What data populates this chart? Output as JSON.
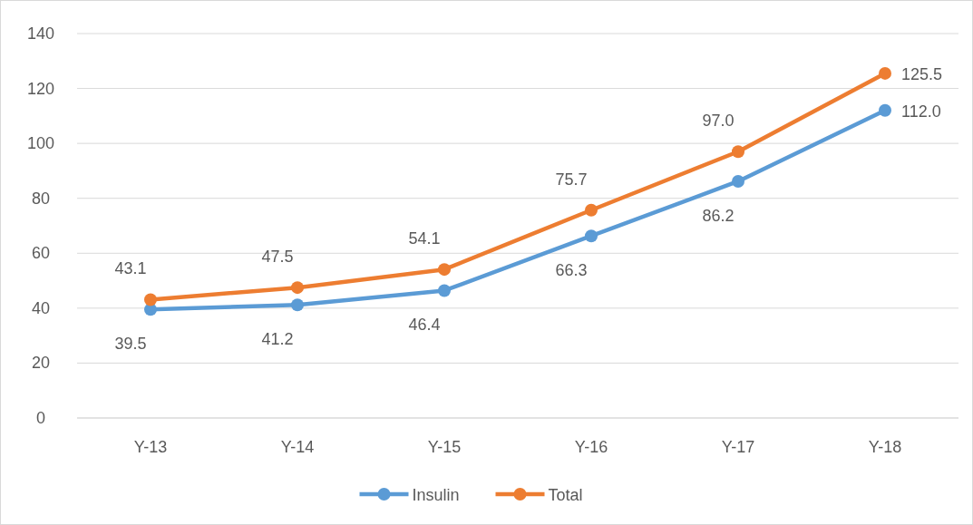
{
  "chart_data": {
    "type": "line",
    "categories": [
      "Y-13",
      "Y-14",
      "Y-15",
      "Y-16",
      "Y-17",
      "Y-18"
    ],
    "series": [
      {
        "name": "Insulin",
        "color": "#5b9bd5",
        "values": [
          39.5,
          41.2,
          46.4,
          66.3,
          86.2,
          112.0
        ],
        "value_labels": [
          "39.5",
          "41.2",
          "46.4",
          "66.3",
          "86.2",
          "112.0"
        ]
      },
      {
        "name": "Total",
        "color": "#ed7d31",
        "values": [
          43.1,
          47.5,
          54.1,
          75.7,
          97.0,
          125.5
        ],
        "value_labels": [
          "43.1",
          "47.5",
          "54.1",
          "75.7",
          "97.0",
          "125.5"
        ]
      }
    ],
    "ylim": [
      0,
      140
    ],
    "yticks": [
      0,
      20,
      40,
      60,
      80,
      100,
      120,
      140
    ],
    "grid": "y",
    "legend": "bottom",
    "marker": "circle",
    "line_style": "solid"
  }
}
